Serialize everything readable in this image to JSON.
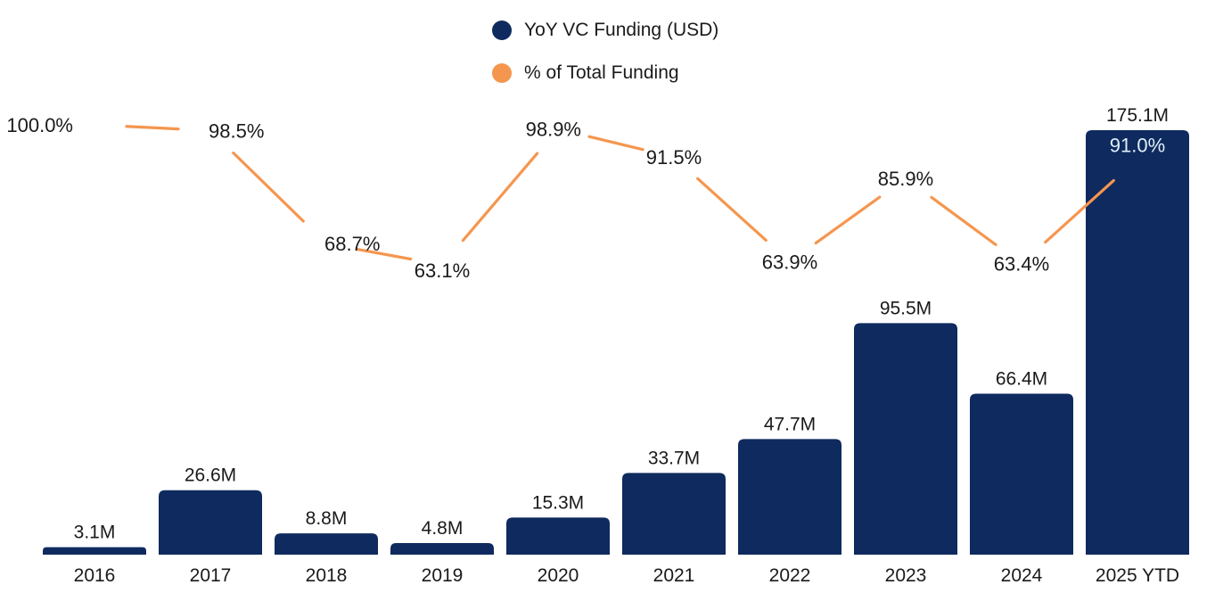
{
  "legend": [
    {
      "label": "YoY VC Funding (USD)",
      "color": "#0f2a5e"
    },
    {
      "label": "% of Total Funding",
      "color": "#f5964f"
    }
  ],
  "chart_data": {
    "type": "bar",
    "title": "",
    "xlabel": "",
    "ylabel": "",
    "grid": false,
    "legend_position": "top-center",
    "categories": [
      "2016",
      "2017",
      "2018",
      "2019",
      "2020",
      "2021",
      "2022",
      "2023",
      "2024",
      "2025 YTD"
    ],
    "series": [
      {
        "name": "YoY VC Funding (USD)",
        "type": "bar",
        "color": "#0f2a5e",
        "values": [
          3.1,
          26.6,
          8.8,
          4.8,
          15.3,
          33.7,
          47.7,
          95.5,
          66.4,
          175.1
        ],
        "labels": [
          "3.1M",
          "26.6M",
          "8.8M",
          "4.8M",
          "15.3M",
          "33.7M",
          "47.7M",
          "95.5M",
          "66.4M",
          "175.1M"
        ],
        "ylim": [
          0,
          175.1
        ]
      },
      {
        "name": "% of Total Funding",
        "type": "line",
        "color": "#f5964f",
        "values": [
          100.0,
          98.5,
          68.7,
          63.1,
          98.9,
          91.5,
          63.9,
          85.9,
          63.4,
          91.0
        ],
        "labels": [
          "100.0%",
          "98.5%",
          "68.7%",
          "63.1%",
          "98.9%",
          "91.5%",
          "63.9%",
          "85.9%",
          "63.4%",
          "91.0%"
        ],
        "ylim": [
          63.1,
          100.0
        ]
      }
    ]
  }
}
